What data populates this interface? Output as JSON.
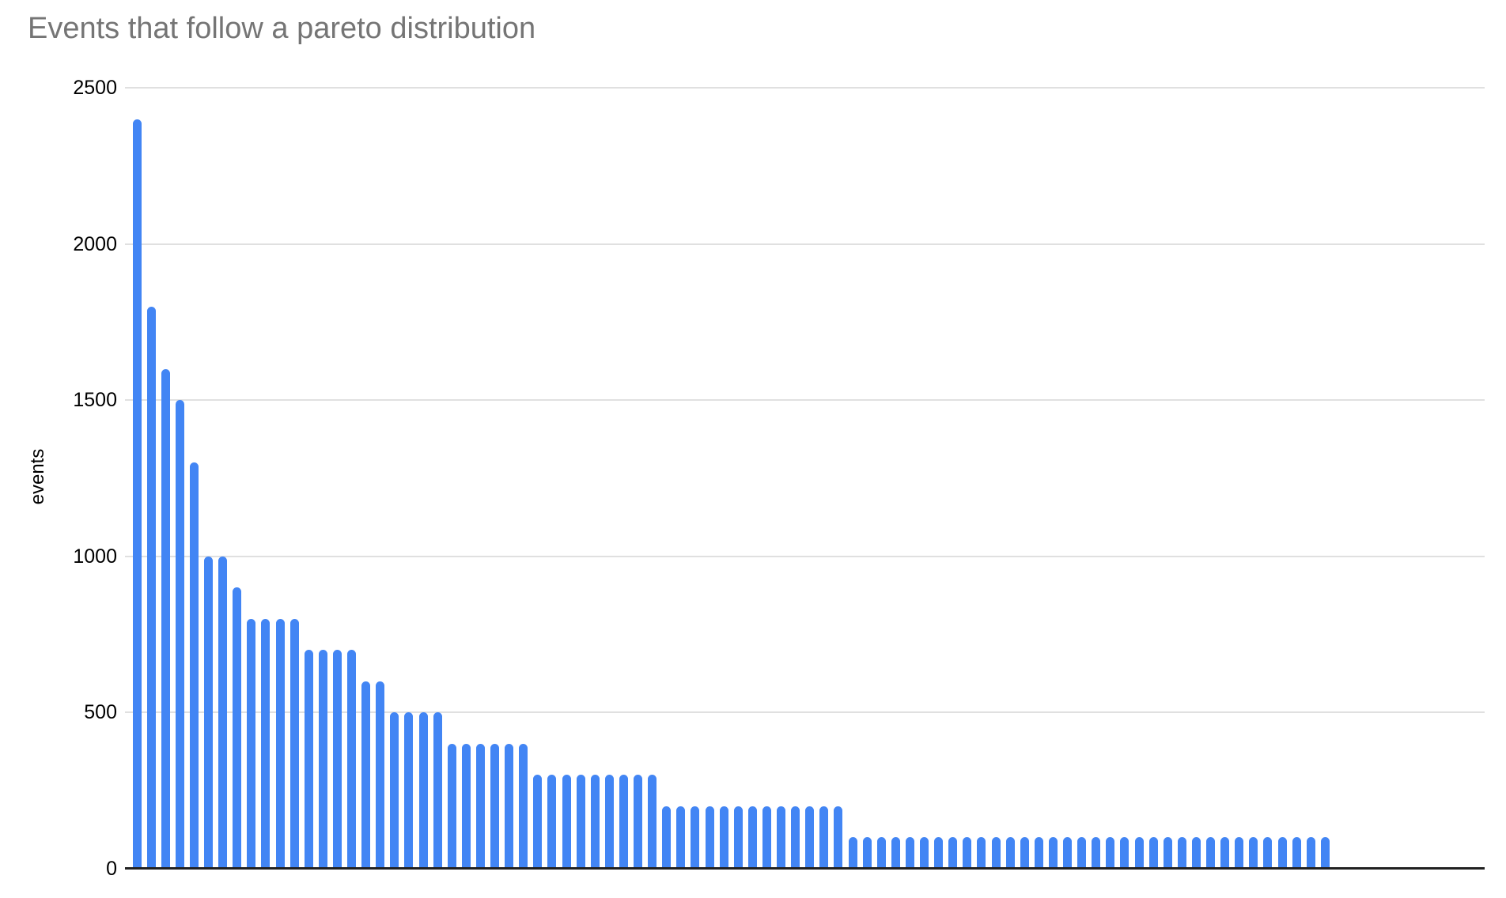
{
  "chart": {
    "title": "Events that follow a pareto distribution",
    "y_axis": {
      "label": "events",
      "tick_labels": [
        "0",
        "500",
        "1000",
        "1500",
        "2000",
        "2500"
      ]
    },
    "x_axis": {
      "label": "",
      "tick_labels": []
    },
    "legend": null
  },
  "colors": {
    "bar": "#4285f4",
    "title_text": "#757575",
    "axis_text": "#000000",
    "gridline": "#e0e0e0",
    "baseline": "#212121",
    "background": "#ffffff"
  },
  "chart_data": {
    "type": "bar",
    "title": "Events that follow a pareto distribution",
    "xlabel": "",
    "ylabel": "events",
    "ylim": [
      0,
      2500
    ],
    "yticks": [
      0,
      500,
      1000,
      1500,
      2000,
      2500
    ],
    "grid": true,
    "legend_position": "none",
    "series_name": "events",
    "categories": [],
    "values": [
      2400,
      1800,
      1600,
      1500,
      1300,
      1000,
      1000,
      900,
      800,
      800,
      800,
      800,
      700,
      700,
      700,
      700,
      600,
      600,
      500,
      500,
      500,
      500,
      400,
      400,
      400,
      400,
      400,
      400,
      300,
      300,
      300,
      300,
      300,
      300,
      300,
      300,
      300,
      200,
      200,
      200,
      200,
      200,
      200,
      200,
      200,
      200,
      200,
      200,
      200,
      200,
      100,
      100,
      100,
      100,
      100,
      100,
      100,
      100,
      100,
      100,
      100,
      100,
      100,
      100,
      100,
      100,
      100,
      100,
      100,
      100,
      100,
      100,
      100,
      100,
      100,
      100,
      100,
      100,
      100,
      100,
      100,
      100,
      100,
      100
    ]
  }
}
